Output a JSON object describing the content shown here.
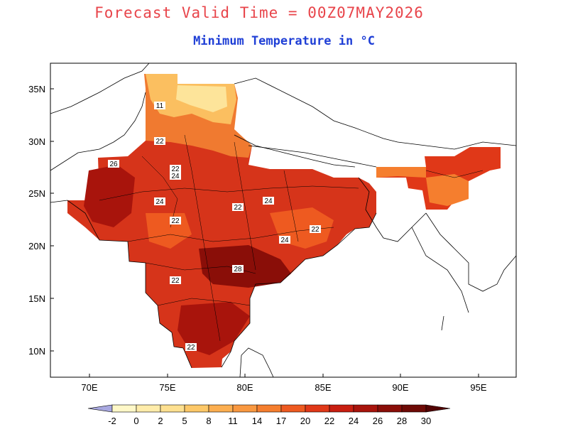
{
  "header": {
    "title": "Forecast Valid Time = 00Z07MAY2026",
    "subtitle": "Minimum Temperature in °C"
  },
  "axes": {
    "x_ticks": [
      "70E",
      "75E",
      "80E",
      "85E",
      "90E",
      "95E"
    ],
    "y_ticks": [
      "35N",
      "30N",
      "25N",
      "20N",
      "15N",
      "10N"
    ]
  },
  "map_labels": [
    "11",
    "22",
    "26",
    "22",
    "24",
    "24",
    "22",
    "24",
    "22",
    "24",
    "22",
    "22",
    "28",
    "22",
    "22"
  ],
  "legend": {
    "labels": [
      "-2",
      "0",
      "2",
      "5",
      "8",
      "11",
      "14",
      "17",
      "20",
      "22",
      "24",
      "26",
      "28",
      "30"
    ],
    "colors": [
      "#a8a8e0",
      "#fff8c8",
      "#ffecaa",
      "#fee090",
      "#fdc868",
      "#fcae50",
      "#f99840",
      "#f57e2e",
      "#ee5a20",
      "#e03818",
      "#c81e10",
      "#a8140c",
      "#8a0e08",
      "#6e0a06",
      "#520404"
    ]
  }
}
